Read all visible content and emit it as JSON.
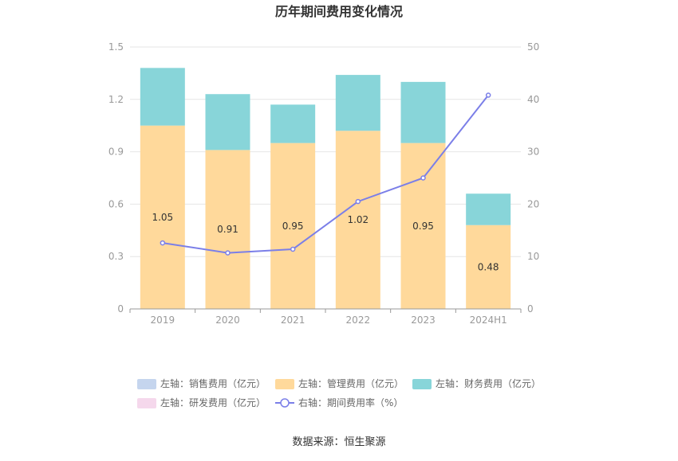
{
  "chart_data": {
    "type": "bar",
    "title": "历年期间费用变化情况",
    "categories": [
      "2019",
      "2020",
      "2021",
      "2022",
      "2023",
      "2024H1"
    ],
    "y_left": {
      "range": [
        0,
        1.5
      ],
      "ticks": [
        "0",
        "0.3",
        "0.6",
        "0.9",
        "1.2",
        "1.5"
      ],
      "tick_values": [
        0,
        0.3,
        0.6,
        0.9,
        1.2,
        1.5
      ]
    },
    "y_right": {
      "range": [
        0,
        50
      ],
      "ticks": [
        "0",
        "10",
        "20",
        "30",
        "40",
        "50"
      ],
      "tick_values": [
        0,
        10,
        20,
        30,
        40,
        50
      ]
    },
    "series": [
      {
        "name": "左轴：销售费用（亿元）",
        "type": "bar",
        "axis": "left",
        "color": "#c5d5ee",
        "values": [
          0,
          0,
          0,
          0,
          0,
          0
        ]
      },
      {
        "name": "左轴：管理费用（亿元）",
        "type": "bar",
        "axis": "left",
        "color": "#ffd99b",
        "values": [
          1.05,
          0.91,
          0.95,
          1.02,
          0.95,
          0.48
        ],
        "labels": [
          "1.05",
          "0.91",
          "0.95",
          "1.02",
          "0.95",
          "0.48"
        ]
      },
      {
        "name": "左轴：财务费用（亿元）",
        "type": "bar",
        "axis": "left",
        "color": "#88d5d9",
        "values": [
          0.33,
          0.32,
          0.22,
          0.32,
          0.35,
          0.18
        ]
      },
      {
        "name": "左轴：研发费用（亿元）",
        "type": "bar",
        "axis": "left",
        "color": "#f5d8ec",
        "values": [
          0,
          0,
          0,
          0,
          0,
          0
        ]
      },
      {
        "name": "右轴：期间费用率（%）",
        "type": "line",
        "axis": "right",
        "color": "#7b7fe8",
        "values": [
          12.6,
          10.7,
          11.4,
          20.5,
          25.0,
          40.8
        ]
      }
    ],
    "legend_position": "bottom",
    "grid": true
  },
  "source": "数据来源：恒生聚源"
}
